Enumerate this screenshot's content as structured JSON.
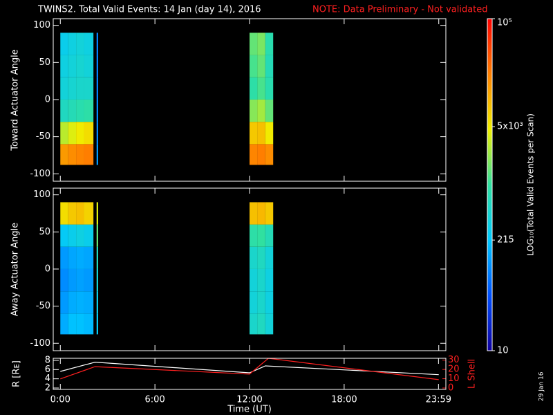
{
  "title": "TWINS2. Total Valid Events: 14 Jan (day  14), 2016",
  "note": "NOTE: Data Preliminary - Not validated",
  "date_stamp": "29 Jan 16",
  "colorbar": {
    "label": "LOG₁₀(Total Valid Events per Scan)",
    "log": true,
    "zlim": [
      10,
      100000
    ],
    "zticks": [
      10,
      215,
      {
        "value": 5000,
        "label": "5x10³"
      },
      {
        "value": 100000,
        "label": "10⁵"
      }
    ],
    "colors": [
      "#1000a0",
      "#0050ff",
      "#00c8ff",
      "#30e0a0",
      "#f0f000",
      "#ff8000",
      "#ff0000"
    ]
  },
  "chart_data": [
    {
      "type": "heatmap",
      "y_label": "Toward Actuator Angle",
      "xbins": [
        0,
        0.5,
        1,
        1.5,
        2.1,
        2.3,
        2.4,
        12,
        12.5,
        13,
        13.5
      ],
      "ybins": [
        -88,
        -60,
        -30,
        0,
        30,
        60,
        90
      ],
      "z": [
        [
          15000,
          18000,
          20000,
          22000,
          null,
          120,
          null,
          20000,
          22000,
          18000
        ],
        [
          3000,
          4000,
          5000,
          6000,
          null,
          100,
          null,
          8000,
          9000,
          5000
        ],
        [
          600,
          700,
          800,
          900,
          null,
          100,
          null,
          2000,
          2500,
          1500
        ],
        [
          400,
          450,
          500,
          500,
          null,
          90,
          null,
          900,
          1200,
          800
        ],
        [
          350,
          400,
          450,
          400,
          null,
          90,
          null,
          1200,
          1500,
          700
        ],
        [
          300,
          350,
          400,
          350,
          null,
          90,
          null,
          1500,
          1800,
          800
        ]
      ],
      "xlim": [
        -0.45,
        24.45
      ],
      "xticks": [
        0,
        6,
        12,
        18,
        24
      ],
      "ylim": [
        -110,
        109
      ],
      "yticks": [
        -100,
        -50,
        0,
        50,
        100
      ]
    },
    {
      "type": "heatmap",
      "y_label": "Away Actuator Angle",
      "xbins": [
        0,
        0.5,
        1,
        1.5,
        2.1,
        2.3,
        2.4,
        12,
        12.5,
        13,
        13.5
      ],
      "ybins": [
        -88,
        -60,
        -30,
        0,
        30,
        60,
        90
      ],
      "z": [
        [
          150,
          200,
          200,
          180,
          null,
          250,
          null,
          500,
          600,
          400
        ],
        [
          120,
          150,
          160,
          150,
          null,
          300,
          null,
          400,
          500,
          350
        ],
        [
          100,
          120,
          130,
          120,
          null,
          400,
          null,
          400,
          500,
          350
        ],
        [
          120,
          140,
          150,
          140,
          null,
          600,
          null,
          500,
          600,
          400
        ],
        [
          250,
          300,
          350,
          300,
          null,
          1500,
          null,
          900,
          1000,
          700
        ],
        [
          6000,
          8000,
          9000,
          7000,
          null,
          4000,
          null,
          9000,
          10000,
          8000
        ]
      ],
      "xlim": [
        -0.45,
        24.45
      ],
      "xticks": [
        0,
        6,
        12,
        18,
        24
      ],
      "ylim": [
        -110,
        109
      ],
      "yticks": [
        -100,
        -50,
        0,
        50,
        100
      ]
    },
    {
      "type": "line",
      "x_label": "Time (UT)",
      "y_label": "R [Rᴇ]",
      "y2_label": "L Shell",
      "x": [
        0,
        2.2,
        12,
        13,
        24
      ],
      "series": [
        {
          "name": "R",
          "color": "#ffffff",
          "values": [
            5.6,
            7.6,
            5.3,
            6.8,
            4.9
          ]
        },
        {
          "name": "L Shell",
          "color": "#ff2020",
          "axis": "y2",
          "x": [
            0,
            2.2,
            12,
            13.2,
            24
          ],
          "values": [
            9.8,
            23,
            15,
            32,
            9
          ]
        }
      ],
      "xlim": [
        -0.45,
        24.45
      ],
      "xticks": [
        {
          "value": 0,
          "label": "0:00"
        },
        {
          "value": 6,
          "label": "6:00"
        },
        {
          "value": 12,
          "label": "12:00"
        },
        {
          "value": 18,
          "label": "18:00"
        },
        {
          "value": 23.983,
          "label": "23:59"
        }
      ],
      "ylim": [
        1.7,
        8.45
      ],
      "yticks": [
        2,
        4,
        6,
        8
      ],
      "y2lim": [
        -1.5,
        32
      ],
      "y2ticks": [
        0,
        10,
        20,
        30
      ]
    }
  ]
}
